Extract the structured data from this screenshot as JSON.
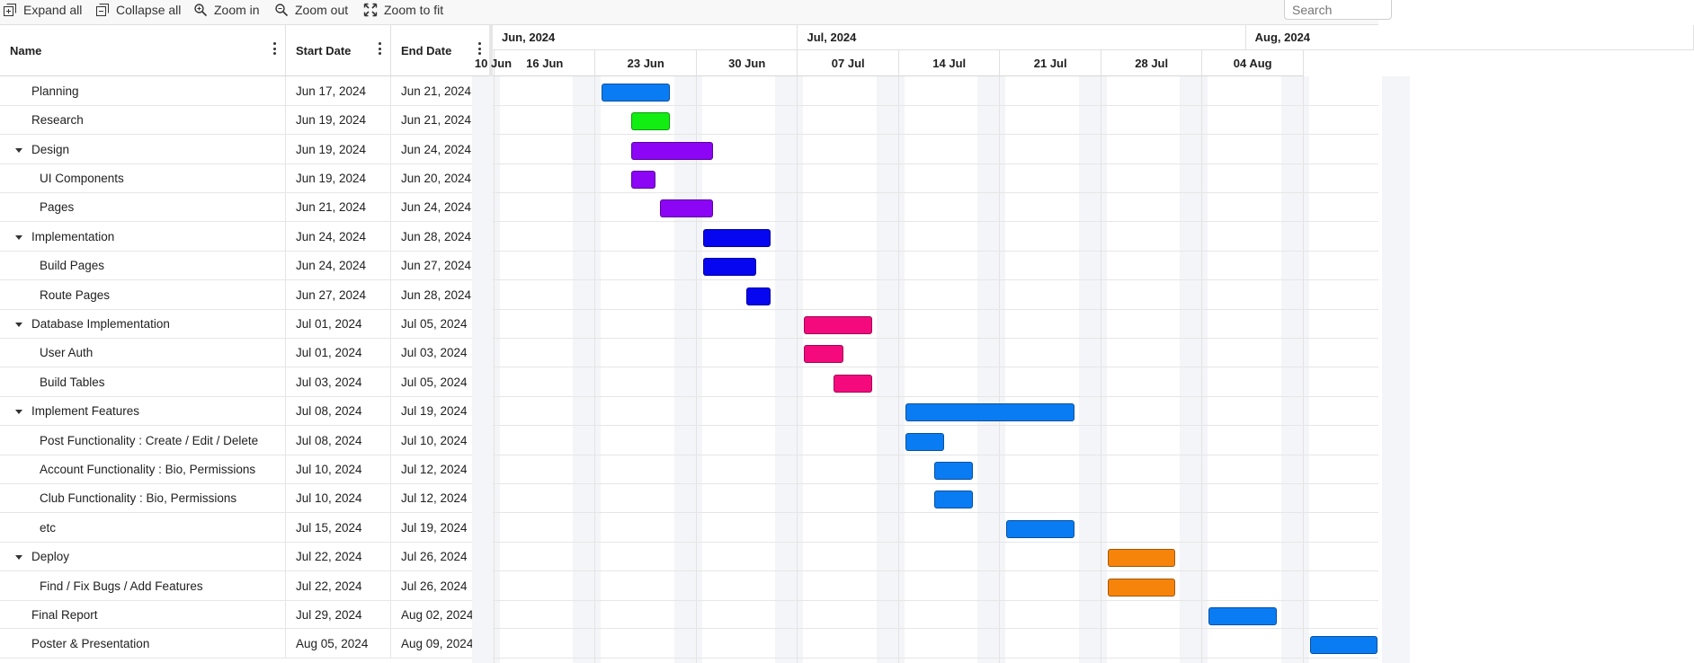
{
  "toolbar": {
    "expand_all": "Expand all",
    "collapse_all": "Collapse all",
    "zoom_in": "Zoom in",
    "zoom_out": "Zoom out",
    "zoom_to_fit": "Zoom to fit",
    "search_placeholder": "Search"
  },
  "grid": {
    "columns": {
      "name": "Name",
      "start": "Start Date",
      "end": "End Date"
    },
    "rows": [
      {
        "name": "Planning",
        "start": "Jun 17, 2024",
        "end": "Jun 21, 2024",
        "level": 0,
        "parent": false,
        "color": "#0a7cf3"
      },
      {
        "name": "Research",
        "start": "Jun 19, 2024",
        "end": "Jun 21, 2024",
        "level": 0,
        "parent": false,
        "color": "#12ee12"
      },
      {
        "name": "Design",
        "start": "Jun 19, 2024",
        "end": "Jun 24, 2024",
        "level": 0,
        "parent": true,
        "color": "#8c05f5"
      },
      {
        "name": "UI Components",
        "start": "Jun 19, 2024",
        "end": "Jun 20, 2024",
        "level": 1,
        "parent": false,
        "color": "#8c05f5"
      },
      {
        "name": "Pages",
        "start": "Jun 21, 2024",
        "end": "Jun 24, 2024",
        "level": 1,
        "parent": false,
        "color": "#8c05f5"
      },
      {
        "name": "Implementation",
        "start": "Jun 24, 2024",
        "end": "Jun 28, 2024",
        "level": 0,
        "parent": true,
        "color": "#0606f0"
      },
      {
        "name": "Build Pages",
        "start": "Jun 24, 2024",
        "end": "Jun 27, 2024",
        "level": 1,
        "parent": false,
        "color": "#0606f0"
      },
      {
        "name": "Route Pages",
        "start": "Jun 27, 2024",
        "end": "Jun 28, 2024",
        "level": 1,
        "parent": false,
        "color": "#0606f0"
      },
      {
        "name": "Database Implementation",
        "start": "Jul 01, 2024",
        "end": "Jul 05, 2024",
        "level": 0,
        "parent": true,
        "color": "#f50a7e"
      },
      {
        "name": "User Auth",
        "start": "Jul 01, 2024",
        "end": "Jul 03, 2024",
        "level": 1,
        "parent": false,
        "color": "#f50a7e"
      },
      {
        "name": "Build Tables",
        "start": "Jul 03, 2024",
        "end": "Jul 05, 2024",
        "level": 1,
        "parent": false,
        "color": "#f50a7e"
      },
      {
        "name": "Implement Features",
        "start": "Jul 08, 2024",
        "end": "Jul 19, 2024",
        "level": 0,
        "parent": true,
        "color": "#0a7cf3"
      },
      {
        "name": "Post Functionality : Create / Edit / Delete",
        "start": "Jul 08, 2024",
        "end": "Jul 10, 2024",
        "level": 1,
        "parent": false,
        "color": "#0a7cf3"
      },
      {
        "name": "Account Functionality : Bio, Permissions",
        "start": "Jul 10, 2024",
        "end": "Jul 12, 2024",
        "level": 1,
        "parent": false,
        "color": "#0a7cf3"
      },
      {
        "name": "Club Functionality : Bio, Permissions",
        "start": "Jul 10, 2024",
        "end": "Jul 12, 2024",
        "level": 1,
        "parent": false,
        "color": "#0a7cf3"
      },
      {
        "name": "etc",
        "start": "Jul 15, 2024",
        "end": "Jul 19, 2024",
        "level": 1,
        "parent": false,
        "color": "#0a7cf3"
      },
      {
        "name": "Deploy",
        "start": "Jul 22, 2024",
        "end": "Jul 26, 2024",
        "level": 0,
        "parent": true,
        "color": "#f7840a"
      },
      {
        "name": "Find / Fix Bugs / Add Features",
        "start": "Jul 22, 2024",
        "end": "Jul 26, 2024",
        "level": 1,
        "parent": false,
        "color": "#f7840a"
      },
      {
        "name": "Final Report",
        "start": "Jul 29, 2024",
        "end": "Aug 02, 2024",
        "level": 0,
        "parent": false,
        "color": "#0a7cf3"
      },
      {
        "name": "Poster & Presentation",
        "start": "Aug 05, 2024",
        "end": "Aug 09, 2024",
        "level": 0,
        "parent": false,
        "color": "#0a7cf3"
      }
    ]
  },
  "timeline": {
    "months": [
      "Jun, 2024",
      "Jul, 2024",
      "Aug, 2024"
    ],
    "weeks": [
      "10 Jun",
      "16 Jun",
      "23 Jun",
      "30 Jun",
      "07 Jul",
      "14 Jul",
      "21 Jul",
      "28 Jul",
      "04 Aug"
    ]
  }
}
